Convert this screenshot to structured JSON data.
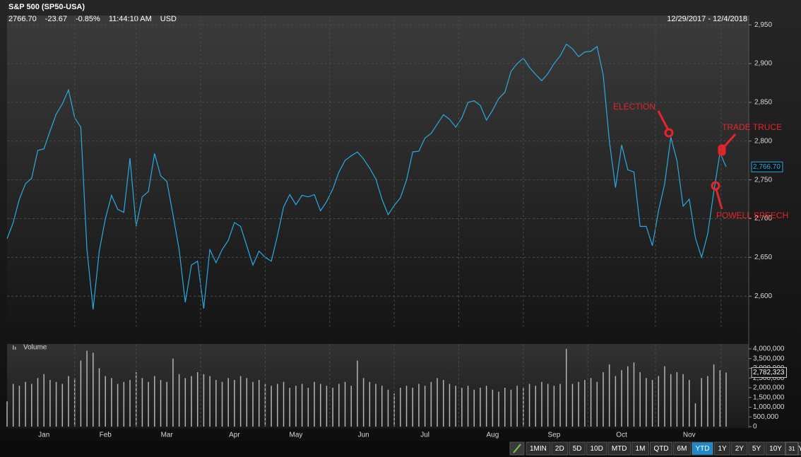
{
  "header": {
    "title": "S&P 500 (SP50-USA)",
    "quote": [
      "2766.70",
      "-23.67",
      "-0.85%",
      "11:44:10 AM",
      "USD"
    ],
    "range": "12/29/2017 - 12/4/2018"
  },
  "chart_data": [
    {
      "type": "line",
      "color": "#29abe2",
      "grid": true,
      "values": [
        2674,
        2695,
        2725,
        2745,
        2752,
        2788,
        2790,
        2813,
        2835,
        2848,
        2866,
        2830,
        2818,
        2660,
        2583,
        2658,
        2700,
        2730,
        2712,
        2708,
        2778,
        2690,
        2728,
        2735,
        2784,
        2755,
        2748,
        2705,
        2660,
        2592,
        2640,
        2645,
        2584,
        2660,
        2643,
        2660,
        2672,
        2695,
        2690,
        2665,
        2640,
        2658,
        2650,
        2645,
        2678,
        2715,
        2731,
        2718,
        2730,
        2728,
        2731,
        2710,
        2722,
        2738,
        2760,
        2775,
        2781,
        2786,
        2777,
        2765,
        2751,
        2725,
        2705,
        2717,
        2727,
        2750,
        2786,
        2787,
        2804,
        2810,
        2822,
        2834,
        2828,
        2818,
        2830,
        2850,
        2852,
        2846,
        2827,
        2840,
        2855,
        2863,
        2890,
        2900,
        2907,
        2895,
        2886,
        2878,
        2887,
        2900,
        2910,
        2925,
        2919,
        2909,
        2915,
        2916,
        2922,
        2885,
        2800,
        2740,
        2795,
        2763,
        2760,
        2690,
        2690,
        2665,
        2710,
        2745,
        2805,
        2775,
        2716,
        2725,
        2675,
        2650,
        2680,
        2735,
        2785,
        2766.7
      ],
      "value_labels": {
        "117": "2,766.70"
      },
      "ylim": [
        2561,
        2962
      ],
      "yticks": [
        {
          "value": 2600,
          "label": "2,600"
        },
        {
          "value": 2650,
          "label": "2,650"
        },
        {
          "value": 2700,
          "label": "2,700"
        },
        {
          "value": 2750,
          "label": "2,750"
        },
        {
          "value": 2800,
          "label": "2,800"
        },
        {
          "value": 2850,
          "label": "2,850"
        },
        {
          "value": 2900,
          "label": "2,900"
        },
        {
          "value": 2950,
          "label": "2,950"
        }
      ],
      "annotations": [
        {
          "text": "ELECTION",
          "color": "#e8242b"
        },
        {
          "text": "TRADE TRUCE",
          "color": "#e8242b"
        },
        {
          "text": "POWELL SPEECH",
          "color": "#e8242b"
        }
      ]
    },
    {
      "type": "bar",
      "title": "Volume",
      "color": "#b4b4b4",
      "categories": [
        null,
        null,
        null,
        null,
        null,
        null,
        "Jan",
        null,
        null,
        null,
        null,
        null,
        null,
        null,
        null,
        null,
        "Feb",
        null,
        null,
        null,
        null,
        null,
        null,
        null,
        null,
        null,
        "Mar",
        null,
        null,
        null,
        null,
        null,
        null,
        null,
        null,
        null,
        null,
        "Apr",
        null,
        null,
        null,
        null,
        null,
        null,
        null,
        null,
        null,
        "May",
        null,
        null,
        null,
        null,
        null,
        null,
        null,
        null,
        null,
        null,
        "Jun",
        null,
        null,
        null,
        null,
        null,
        null,
        null,
        null,
        null,
        "Jul",
        null,
        null,
        null,
        null,
        null,
        null,
        null,
        null,
        null,
        null,
        "Aug",
        null,
        null,
        null,
        null,
        null,
        null,
        null,
        null,
        null,
        "Sep",
        null,
        null,
        null,
        null,
        null,
        null,
        null,
        null,
        null,
        null,
        "Oct",
        null,
        null,
        null,
        null,
        null,
        null,
        null,
        null,
        null,
        null,
        "Nov",
        null,
        null,
        null,
        null,
        null,
        null
      ],
      "values": [
        1300000,
        2200000,
        2100000,
        2300000,
        2200000,
        2500000,
        2700000,
        2400000,
        2300000,
        2200000,
        2600000,
        2500000,
        3400000,
        3900000,
        3800000,
        3000000,
        2600000,
        2500000,
        2200000,
        2300000,
        2400000,
        2800000,
        2500000,
        2300000,
        2600000,
        2400000,
        2300000,
        3500000,
        2700000,
        2500000,
        2600000,
        2800000,
        2700000,
        2600000,
        2400000,
        2300000,
        2500000,
        2400000,
        2600000,
        2500000,
        2300000,
        2400000,
        2200000,
        2100000,
        2200000,
        2300000,
        2000000,
        2100000,
        2200000,
        2000000,
        2300000,
        2200000,
        2100000,
        2000000,
        2200000,
        2300000,
        2100000,
        3400000,
        2500000,
        2300000,
        2200000,
        2100000,
        1900000,
        1700000,
        2000000,
        2100000,
        2000000,
        2200000,
        2100000,
        2300000,
        2500000,
        2400000,
        2200000,
        2100000,
        2000000,
        2100000,
        1900000,
        2000000,
        2100000,
        1900000,
        1800000,
        2000000,
        1900000,
        2100000,
        2000000,
        2200000,
        2100000,
        2300000,
        2200000,
        2100000,
        2200000,
        4000000,
        2200000,
        2300000,
        2400000,
        2500000,
        2300000,
        2800000,
        3200000,
        2600000,
        2900000,
        3100000,
        3300000,
        2800000,
        2500000,
        2400000,
        2600000,
        3100000,
        2700000,
        2800000,
        2700000,
        2400000,
        1200000,
        2500000,
        2600000,
        3200000,
        2900000,
        2782323
      ],
      "value_labels": {
        "117": "2,782,323"
      },
      "ylim": [
        0,
        4250000
      ],
      "yticks": [
        0,
        {
          "value": 500000,
          "label": "500,000"
        },
        {
          "value": 1000000,
          "label": "1,000,000"
        },
        {
          "value": 1500000,
          "label": "1,500,000"
        },
        {
          "value": 2000000,
          "label": "2,000,000"
        },
        {
          "value": 2500000,
          "label": "2,500,000"
        },
        {
          "value": 3000000,
          "label": "3,000,000"
        },
        {
          "value": 3500000,
          "label": "3,500,000"
        },
        {
          "value": 4000000,
          "label": "4,000,000"
        }
      ]
    }
  ],
  "toolbar": {
    "buttons": [
      "1MIN",
      "2D",
      "5D",
      "10D",
      "MTD",
      "1M",
      "QTD",
      "6M",
      "YTD",
      "1Y",
      "2Y",
      "5Y",
      "10Y",
      "20Y"
    ],
    "selected_index": 8,
    "calendar": "31"
  }
}
